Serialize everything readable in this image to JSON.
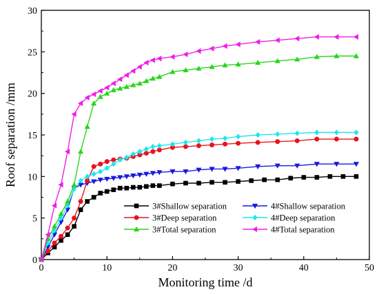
{
  "chart_data": {
    "type": "line",
    "title": "",
    "xlabel": "Monitoring time /d",
    "ylabel": "Roof separation /mm",
    "xlim": [
      0,
      50
    ],
    "ylim": [
      0,
      30
    ],
    "xticks": [
      0,
      10,
      20,
      30,
      40,
      50
    ],
    "yticks": [
      0,
      5,
      10,
      15,
      20,
      25,
      30
    ],
    "grid": false,
    "legend_position": "lower-right",
    "series": [
      {
        "name": "3#Shallow separation",
        "color": "#000000",
        "marker": "square",
        "x": [
          0,
          1,
          2,
          3,
          4,
          5,
          6,
          7,
          8,
          9,
          10,
          11,
          12,
          13,
          14,
          15,
          16,
          17,
          18,
          20,
          22,
          24,
          26,
          28,
          30,
          32,
          34,
          36,
          38,
          40,
          42,
          44,
          46,
          48
        ],
        "y": [
          0,
          0.8,
          1.5,
          2.3,
          3.0,
          4.0,
          6.0,
          7.0,
          7.5,
          8.0,
          8.2,
          8.4,
          8.6,
          8.6,
          8.7,
          8.7,
          8.8,
          8.9,
          8.9,
          9.1,
          9.2,
          9.2,
          9.3,
          9.3,
          9.4,
          9.5,
          9.6,
          9.6,
          9.8,
          9.9,
          9.9,
          10.0,
          10.0,
          10.0
        ]
      },
      {
        "name": "4#Shallow separation",
        "color": "#1a1adc",
        "marker": "triangle-down",
        "x": [
          0,
          1,
          2,
          3,
          4,
          5,
          6,
          7,
          8,
          9,
          10,
          11,
          12,
          13,
          14,
          15,
          16,
          17,
          18,
          20,
          22,
          24,
          26,
          28,
          30,
          33,
          36,
          39,
          42,
          45,
          48
        ],
        "y": [
          0,
          1.5,
          3.0,
          4.5,
          6.0,
          8.6,
          9.0,
          9.2,
          9.4,
          9.6,
          9.7,
          9.8,
          9.9,
          10.0,
          10.1,
          10.2,
          10.3,
          10.4,
          10.5,
          10.6,
          10.6,
          10.8,
          10.9,
          10.9,
          11.0,
          11.2,
          11.3,
          11.3,
          11.5,
          11.5,
          11.5
        ]
      },
      {
        "name": "3#Deep separation",
        "color": "#e8141e",
        "marker": "circle",
        "x": [
          0,
          1,
          2,
          3,
          4,
          5,
          6,
          7,
          8,
          9,
          10,
          11,
          12,
          13,
          14,
          15,
          16,
          17,
          18,
          20,
          22,
          24,
          26,
          28,
          30,
          33,
          36,
          39,
          42,
          45,
          48
        ],
        "y": [
          0,
          1.0,
          2.0,
          2.8,
          3.8,
          5.0,
          7.0,
          9.5,
          11.2,
          11.5,
          11.8,
          12.0,
          12.1,
          12.2,
          12.4,
          12.6,
          12.8,
          13.0,
          13.2,
          13.5,
          13.6,
          13.7,
          13.8,
          13.9,
          14.0,
          14.1,
          14.2,
          14.3,
          14.5,
          14.5,
          14.5
        ]
      },
      {
        "name": "4#Deep separation",
        "color": "#1ee6f0",
        "marker": "diamond",
        "x": [
          0,
          1,
          2,
          3,
          4,
          5,
          6,
          7,
          8,
          9,
          10,
          11,
          12,
          13,
          14,
          15,
          16,
          17,
          18,
          20,
          22,
          24,
          26,
          28,
          30,
          33,
          36,
          39,
          42,
          45,
          48
        ],
        "y": [
          0,
          2.0,
          3.5,
          5.0,
          6.5,
          8.5,
          9.5,
          10.0,
          10.3,
          10.6,
          11.0,
          11.5,
          12.0,
          12.3,
          12.7,
          13.0,
          13.3,
          13.6,
          13.7,
          13.9,
          14.1,
          14.3,
          14.5,
          14.6,
          14.8,
          15.0,
          15.1,
          15.2,
          15.3,
          15.3,
          15.3
        ]
      },
      {
        "name": "3#Total separation",
        "color": "#2ad41e",
        "marker": "triangle-up",
        "x": [
          0,
          1,
          2,
          3,
          4,
          5,
          6,
          7,
          8,
          9,
          10,
          11,
          12,
          13,
          14,
          15,
          16,
          17,
          18,
          20,
          22,
          24,
          26,
          28,
          30,
          33,
          36,
          39,
          42,
          45,
          48
        ],
        "y": [
          0,
          2.5,
          4.0,
          5.5,
          7.0,
          9.0,
          13.0,
          16.0,
          18.8,
          19.6,
          20.0,
          20.4,
          20.6,
          20.8,
          21.0,
          21.2,
          21.5,
          21.8,
          22.0,
          22.6,
          22.8,
          23.0,
          23.2,
          23.4,
          23.5,
          23.7,
          23.9,
          24.1,
          24.4,
          24.5,
          24.5
        ]
      },
      {
        "name": "4#Total separation",
        "color": "#ee1ee8",
        "marker": "triangle-left",
        "x": [
          0,
          1,
          2,
          3,
          4,
          5,
          6,
          7,
          8,
          9,
          10,
          11,
          12,
          13,
          14,
          15,
          16,
          17,
          18,
          20,
          22,
          24,
          26,
          28,
          30,
          33,
          36,
          39,
          42,
          45,
          48
        ],
        "y": [
          0,
          3.0,
          6.5,
          9.0,
          13.0,
          17.5,
          18.8,
          19.5,
          19.9,
          20.3,
          20.7,
          21.2,
          21.7,
          22.2,
          22.7,
          23.2,
          23.7,
          24.0,
          24.2,
          24.4,
          24.7,
          25.1,
          25.4,
          25.7,
          25.9,
          26.2,
          26.4,
          26.6,
          26.8,
          26.8,
          26.8
        ]
      }
    ],
    "legend_order": [
      0,
      1,
      2,
      3,
      4,
      5
    ]
  }
}
